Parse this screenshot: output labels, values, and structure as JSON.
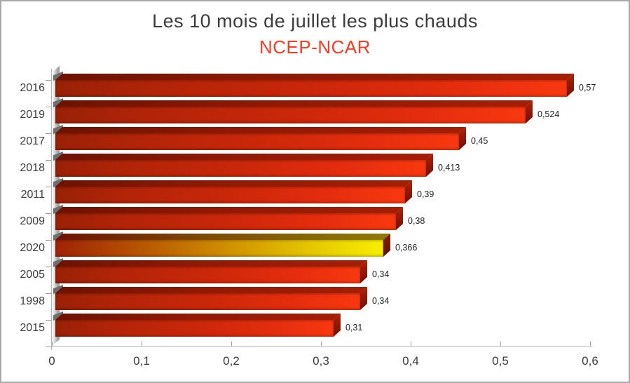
{
  "title": "Les 10 mois de juillet les plus chauds",
  "subtitle": "NCEP-NCAR",
  "chart_data": {
    "type": "bar",
    "orientation": "horizontal",
    "title": "Les 10 mois de juillet les plus chauds",
    "subtitle": "NCEP-NCAR",
    "categories": [
      "2016",
      "2019",
      "2017",
      "2018",
      "2011",
      "2009",
      "2020",
      "2005",
      "1998",
      "2015"
    ],
    "values": [
      0.57,
      0.524,
      0.45,
      0.413,
      0.39,
      0.38,
      0.366,
      0.34,
      0.34,
      0.31
    ],
    "value_labels": [
      "0,57",
      "0,524",
      "0,45",
      "0,413",
      "0,39",
      "0,38",
      "0,366",
      "0,34",
      "0,34",
      "0,31"
    ],
    "highlight_category": "2020",
    "xlabel": "",
    "ylabel": "",
    "xlim": [
      0,
      0.6
    ],
    "x_ticks": [
      0,
      0.1,
      0.2,
      0.3,
      0.4,
      0.5,
      0.6
    ],
    "x_tick_labels": [
      "0",
      "0,1",
      "0,2",
      "0,3",
      "0,4",
      "0,5",
      "0,6"
    ],
    "grid": false,
    "legend": "none",
    "style": "3d-bars",
    "colors": {
      "title": "#3c3c3c",
      "subtitle": "#fb3a20",
      "bar_dark": "#992106",
      "bar_mid": "#ca2709",
      "bar_bright": "#f8380f",
      "bar_top_dark": "#6d1202",
      "bar_top_light": "#a51e06",
      "bar_side_top": "#ad2305",
      "bar_side_bottom": "#6f1203",
      "highlight_orange": "#cd8a00",
      "highlight_bright": "#f7ef00",
      "highlight_top_right": "#8f7c00",
      "axis_line": "#b5b5b5",
      "tick": "#9a9a9a",
      "wall_shadow": "#6f6f6f",
      "label_text": "#1f1f1f"
    }
  }
}
